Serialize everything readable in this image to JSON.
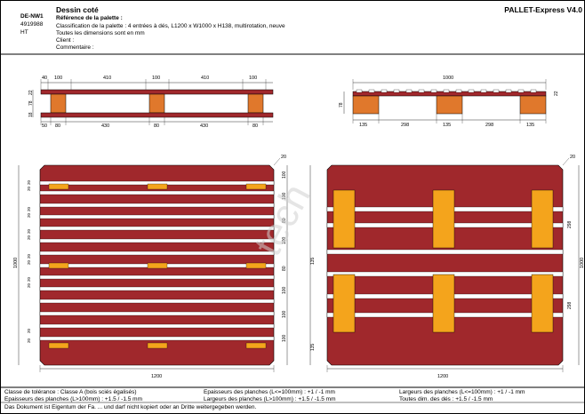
{
  "header": {
    "code": "DE-NW1",
    "number": "4919988",
    "ht": "HT",
    "title": "Dessin coté",
    "brand": "PALLET-Express V4.0",
    "ref_label": "Référence de la palette :",
    "classification": "Classification de la palette : 4 entrées à dés, L1200 x W1000 x H138, multirotation, neuve",
    "dims_note": "Toutes les dimensions sont en mm",
    "client_label": "Client :",
    "comment_label": "Commentaire :"
  },
  "side_view": {
    "top_dims": [
      "40",
      "100",
      "410",
      "100",
      "410",
      "100"
    ],
    "bottom_dims": [
      "50",
      "80",
      "430",
      "80",
      "430",
      "80"
    ],
    "height_dims": [
      "22",
      "78",
      "18"
    ]
  },
  "end_view": {
    "width_dim": "1000",
    "bottom_dims": [
      "135",
      "298",
      "135",
      "298",
      "135"
    ],
    "height_dims": [
      "22",
      "78"
    ]
  },
  "top_view": {
    "corner_dim": "20",
    "height_dim": "1000",
    "width_dim": "1200",
    "left_board_dims": [
      "20",
      "20",
      "20",
      "20",
      "20",
      "20",
      "20",
      "20",
      "20",
      "20",
      "20",
      "20"
    ],
    "right_gap_dims": [
      "100",
      "100",
      "80",
      "100",
      "80",
      "100",
      "100",
      "100"
    ]
  },
  "bottom_view": {
    "corner_dim": "20",
    "height_dim": "1000",
    "width_dim": "1200",
    "right_dims": [
      "298",
      "135",
      "298",
      "135"
    ]
  },
  "watermark": "tech",
  "footer": {
    "tolerance_class": "Classe de tolérance : Classe A (bois sciés égalisés)",
    "thick_small": "Epaisseurs des planches (L<=100mm) : +1 / -1 mm",
    "width_small": "Largeurs des planches (L<=100mm) : +1 / -1 mm",
    "thick_large": "Epaisseurs des planches (L>100mm) : +1.5 / -1.5 mm",
    "width_large": "Largeurs des planches (L>100mm) : +1.5 / -1.5 mm",
    "blocks_dims": "Toutes dim. des dés : +1.5 / -1.5 mm",
    "ownership": "Das Dokument ist Eigentum der Fa. ... und darf nicht kopiert oder an Dritte weitergegeben werden."
  },
  "colors": {
    "board": "#a0282c",
    "block": "#e0782c",
    "topblock": "#f4a41c",
    "line": "#000000"
  }
}
